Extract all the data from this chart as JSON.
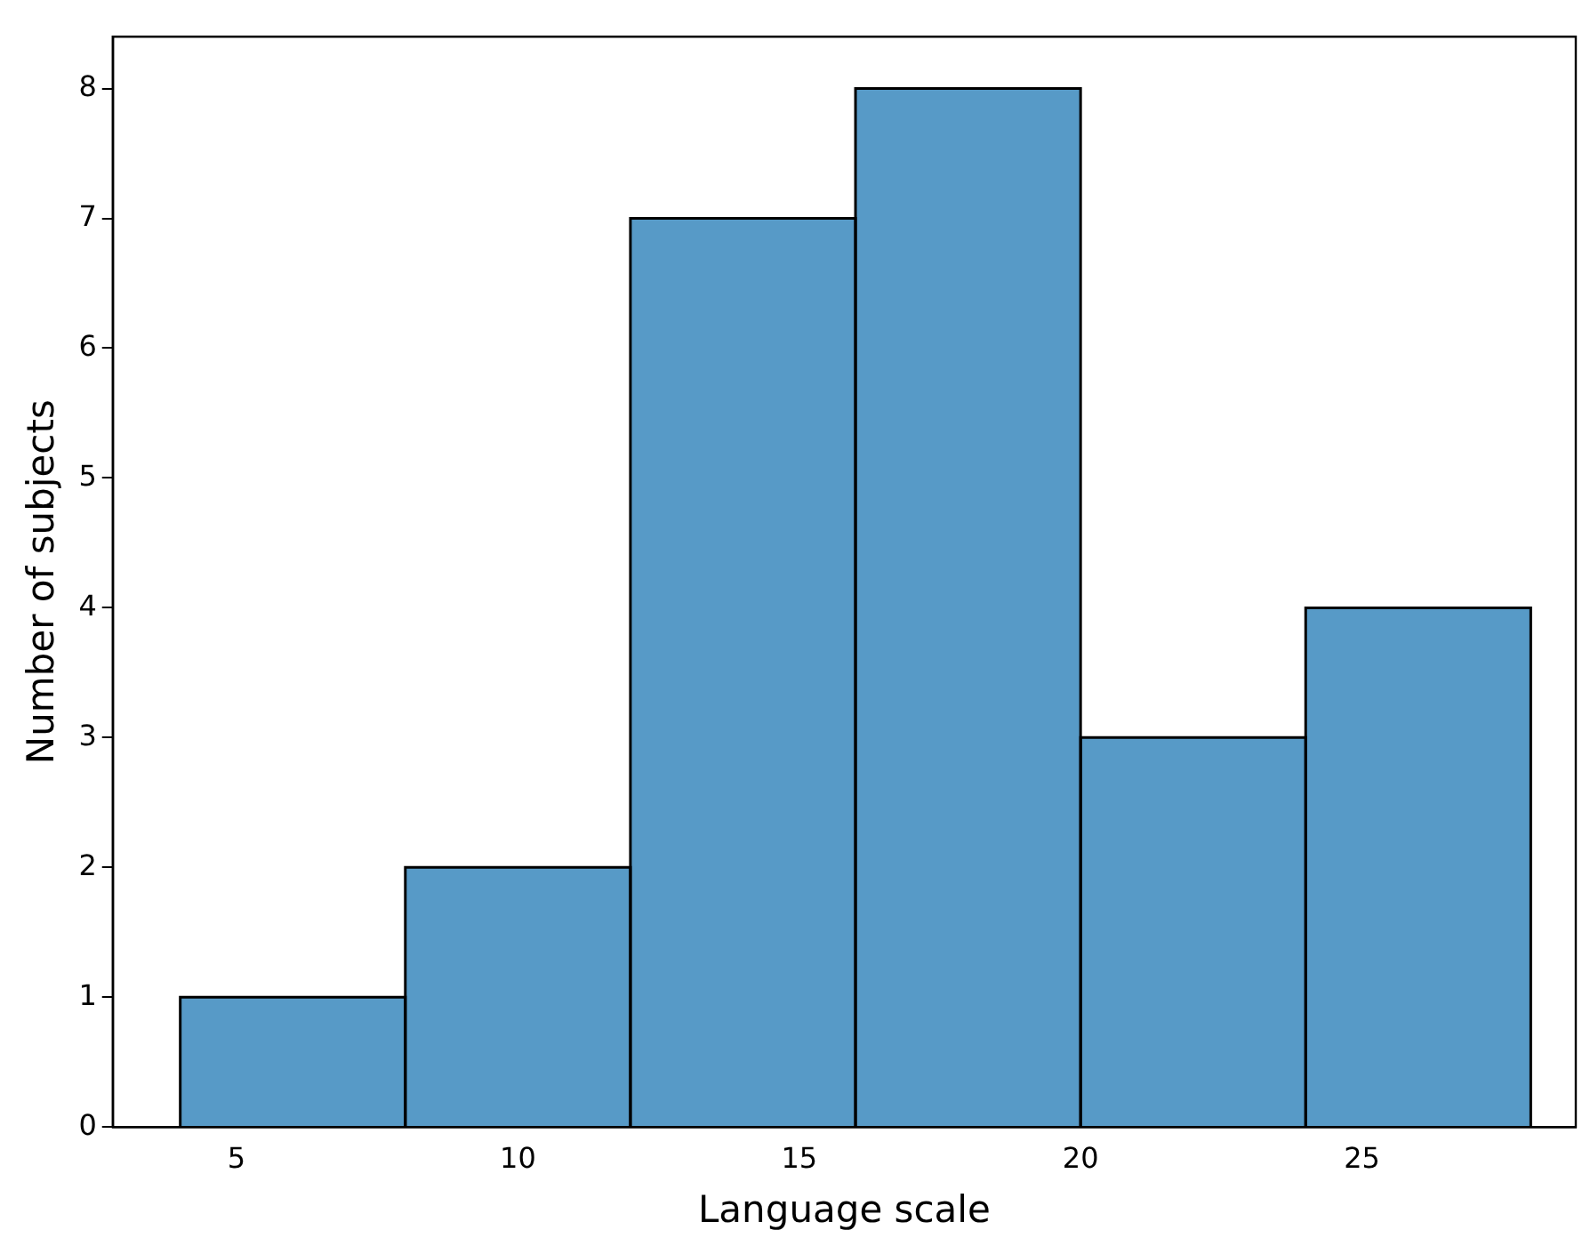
{
  "chart_data": {
    "type": "histogram",
    "xlabel": "Language scale",
    "ylabel": "Number of subjects",
    "bins": [
      4,
      8,
      12,
      16,
      20,
      24,
      28
    ],
    "values": [
      1,
      2,
      7,
      8,
      3,
      4
    ],
    "color": "#579ac7",
    "xlim": [
      2.8,
      28.8
    ],
    "xticks": [
      5,
      10,
      15,
      20,
      25
    ],
    "ylim": [
      0,
      8.4
    ],
    "yticks": [
      0,
      1,
      2,
      3,
      4,
      5,
      6,
      7,
      8
    ],
    "grid": false,
    "legend": false
  }
}
